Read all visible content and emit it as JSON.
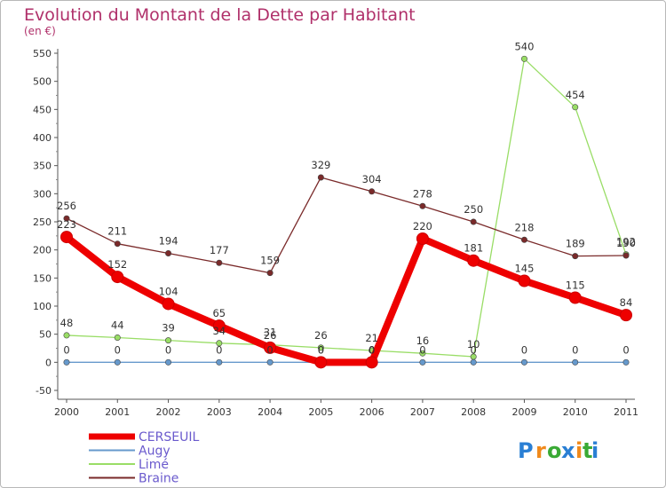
{
  "chart_data": {
    "type": "line",
    "title": "Evolution du Montant de la Dette par Habitant",
    "subtitle": "(en €)",
    "x": [
      "2000",
      "2001",
      "2002",
      "2003",
      "2004",
      "2005",
      "2006",
      "2007",
      "2008",
      "2009",
      "2010",
      "2011"
    ],
    "ylim": [
      -50,
      550
    ],
    "yticks": [
      -50,
      0,
      50,
      100,
      150,
      200,
      250,
      300,
      350,
      400,
      450,
      500,
      550
    ],
    "grid": false,
    "legend_position": "bottom-left",
    "series": [
      {
        "name": "CERSEUIL",
        "color": "#ee0000",
        "values": [
          223,
          152,
          104,
          65,
          26,
          0,
          0,
          220,
          181,
          145,
          115,
          84
        ]
      },
      {
        "name": "Augy",
        "color": "#6699cc",
        "values": [
          0,
          0,
          0,
          0,
          0,
          0,
          0,
          0,
          0,
          0,
          0,
          0
        ]
      },
      {
        "name": "Limé",
        "color": "#99dd66",
        "values": [
          48,
          44,
          39,
          34,
          31,
          26,
          21,
          16,
          10,
          540,
          454,
          192
        ]
      },
      {
        "name": "Braine",
        "color": "#7a2a2a",
        "values": [
          256,
          211,
          194,
          177,
          159,
          329,
          304,
          278,
          250,
          218,
          189,
          190
        ]
      }
    ]
  },
  "logo": {
    "letters": [
      "P",
      "r",
      "o",
      "x",
      "i",
      "t",
      "i"
    ],
    "colors": [
      "#2a7fd4",
      "#f08a1c",
      "#3aaa35",
      "#2a7fd4",
      "#f08a1c",
      "#3aaa35",
      "#2a7fd4"
    ]
  }
}
